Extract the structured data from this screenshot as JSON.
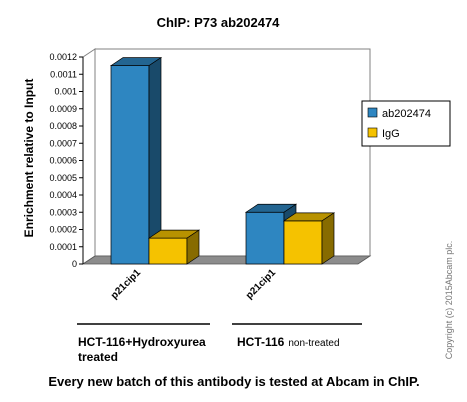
{
  "chart_data": {
    "type": "bar",
    "title": "ChIP: P73  ab202474",
    "ylabel": "Enrichment relative to Input",
    "xlabel": "",
    "ylim": [
      0,
      0.0012
    ],
    "yticks": [
      "0",
      "0.0001",
      "0.0002",
      "0.0003",
      "0.0004",
      "0.0005",
      "0.0006",
      "0.0007",
      "0.0008",
      "0.0009",
      "0.001",
      "0.0011",
      "0.0012"
    ],
    "categories": [
      "p21cip1",
      "p21cip1"
    ],
    "series": [
      {
        "name": "ab202474",
        "values": [
          0.00115,
          0.0003
        ],
        "color": "#2e86c1"
      },
      {
        "name": "IgG",
        "values": [
          0.00015,
          0.00025
        ],
        "color": "#f5c200"
      }
    ],
    "legend_position": "right",
    "grid": false,
    "group_labels": [
      {
        "main": "HCT-116+Hydroxyurea",
        "sub": "treated"
      },
      {
        "main": "HCT-116",
        "sub": "non-treated"
      }
    ]
  },
  "footer": "Every new batch of this antibody is tested at Abcam in ChIP.",
  "copyright": "Copyright (c) 2015Abcam plc."
}
